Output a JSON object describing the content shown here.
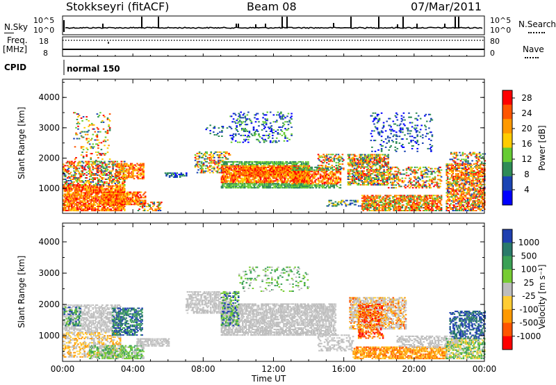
{
  "header": {
    "radar": "Stokkseyri (fitACF)",
    "beam": "Beam 08",
    "date": "07/Mar/2011"
  },
  "strip": {
    "nsky_label": "N.Sky",
    "nsky_tick_top": "10^5",
    "nsky_tick_bottom": "10^0",
    "nsky_right_top": "10^5",
    "nsky_right_bottom": "10^0",
    "nsearch_label": "N.Search",
    "freq_label": "Freq.",
    "freq_unit": "[MHz]",
    "freq_tick_top": "18",
    "freq_tick_bottom": "8",
    "nave_tick_top": "80",
    "nave_tick_bottom": "0",
    "nave_label": "Nave",
    "cpid_label": "CPID",
    "cpid_value": "normal 150"
  },
  "colors": {
    "power_scale": [
      "#0000ff",
      "#1a44b4",
      "#2e8b57",
      "#66cc33",
      "#ffcc00",
      "#ff9900",
      "#ff5500",
      "#ff0000"
    ],
    "velocity_scale": [
      "#1f3fb0",
      "#2a7a6a",
      "#3aa055",
      "#77cc33",
      "#bdbdbd",
      "#ffcc33",
      "#ff9900",
      "#ff5500",
      "#ff0000"
    ],
    "ground_scatter": "#bdbdbd"
  },
  "chart_data": [
    {
      "type": "heatmap",
      "panel": "power",
      "xlabel": "Time UT",
      "ylabel": "Slant Range [km]",
      "xlim": [
        0,
        24
      ],
      "ylim": [
        180,
        4600
      ],
      "yticks": [
        "1000",
        "2000",
        "3000",
        "4000"
      ],
      "xticks": [
        "00:00",
        "04:00",
        "08:00",
        "12:00",
        "16:00",
        "20:00",
        "00:00"
      ],
      "colorbar": {
        "label": "Power [dB]",
        "ticks": [
          "4",
          "8",
          "12",
          "16",
          "20",
          "24",
          "28"
        ],
        "range": [
          0,
          30
        ]
      }
    },
    {
      "type": "heatmap",
      "panel": "velocity",
      "xlabel": "Time UT",
      "ylabel": "Slant Range [km]",
      "xlim": [
        0,
        24
      ],
      "ylim": [
        180,
        4600
      ],
      "yticks": [
        "1000",
        "2000",
        "3000",
        "4000"
      ],
      "xticks": [
        "00:00",
        "04:00",
        "08:00",
        "12:00",
        "16:00",
        "20:00",
        "00:00"
      ],
      "colorbar": {
        "label": "Velocity [m s⁻¹]",
        "ticks": [
          "1000",
          "500",
          "100",
          "25",
          "-25",
          "-100",
          "-500",
          "-1000"
        ]
      }
    }
  ]
}
